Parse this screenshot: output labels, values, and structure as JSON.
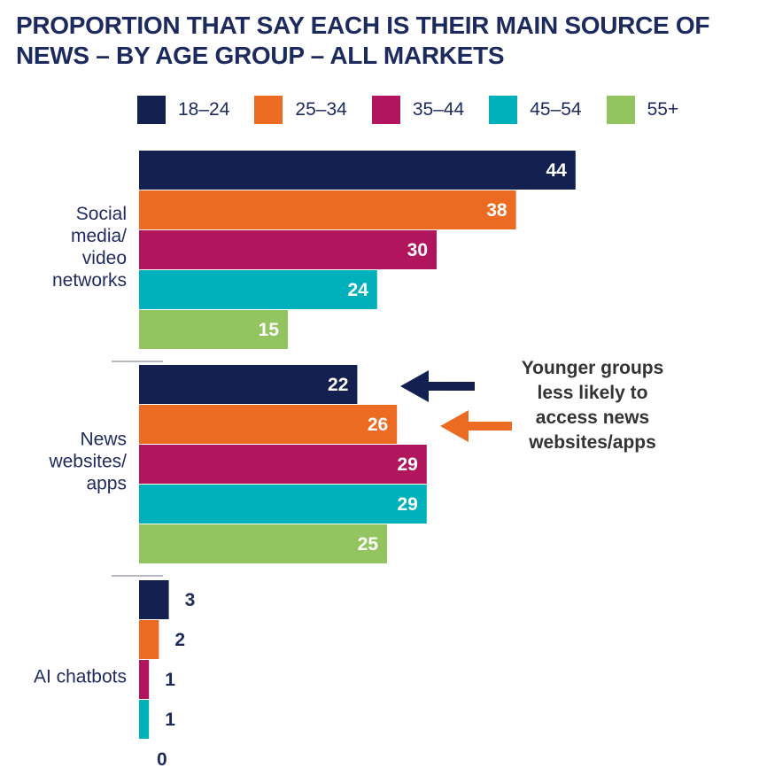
{
  "chart_data": {
    "type": "bar",
    "orientation": "horizontal",
    "title": "PROPORTION THAT SAY EACH IS THEIR MAIN SOURCE OF NEWS – BY AGE GROUP – ALL MARKETS",
    "categories": [
      {
        "id": "social",
        "label_lines": [
          "Social",
          "media/",
          "video",
          "networks"
        ]
      },
      {
        "id": "news",
        "label_lines": [
          "News",
          "websites/",
          "apps"
        ]
      },
      {
        "id": "ai",
        "label_lines": [
          "AI chatbots"
        ]
      }
    ],
    "series": [
      {
        "name": "18–24",
        "color": "#14204f",
        "values": [
          44,
          22,
          3
        ]
      },
      {
        "name": "25–34",
        "color": "#ec6b22",
        "values": [
          38,
          26,
          2
        ]
      },
      {
        "name": "35–44",
        "color": "#b0155e",
        "values": [
          30,
          29,
          1
        ]
      },
      {
        "name": "45–54",
        "color": "#00b1bc",
        "values": [
          24,
          29,
          1
        ]
      },
      {
        "name": "55+",
        "color": "#92c560",
        "values": [
          15,
          25,
          0
        ]
      }
    ],
    "xlim": [
      0,
      50
    ],
    "legend_position": "top",
    "annotation": {
      "text_lines": [
        "Younger groups",
        "less likely to",
        "access news",
        "websites/apps"
      ],
      "arrow_colors": [
        "#14204f",
        "#ec6b22"
      ],
      "points_to": "News websites/apps: 18–24 and 25–34 bars"
    }
  }
}
